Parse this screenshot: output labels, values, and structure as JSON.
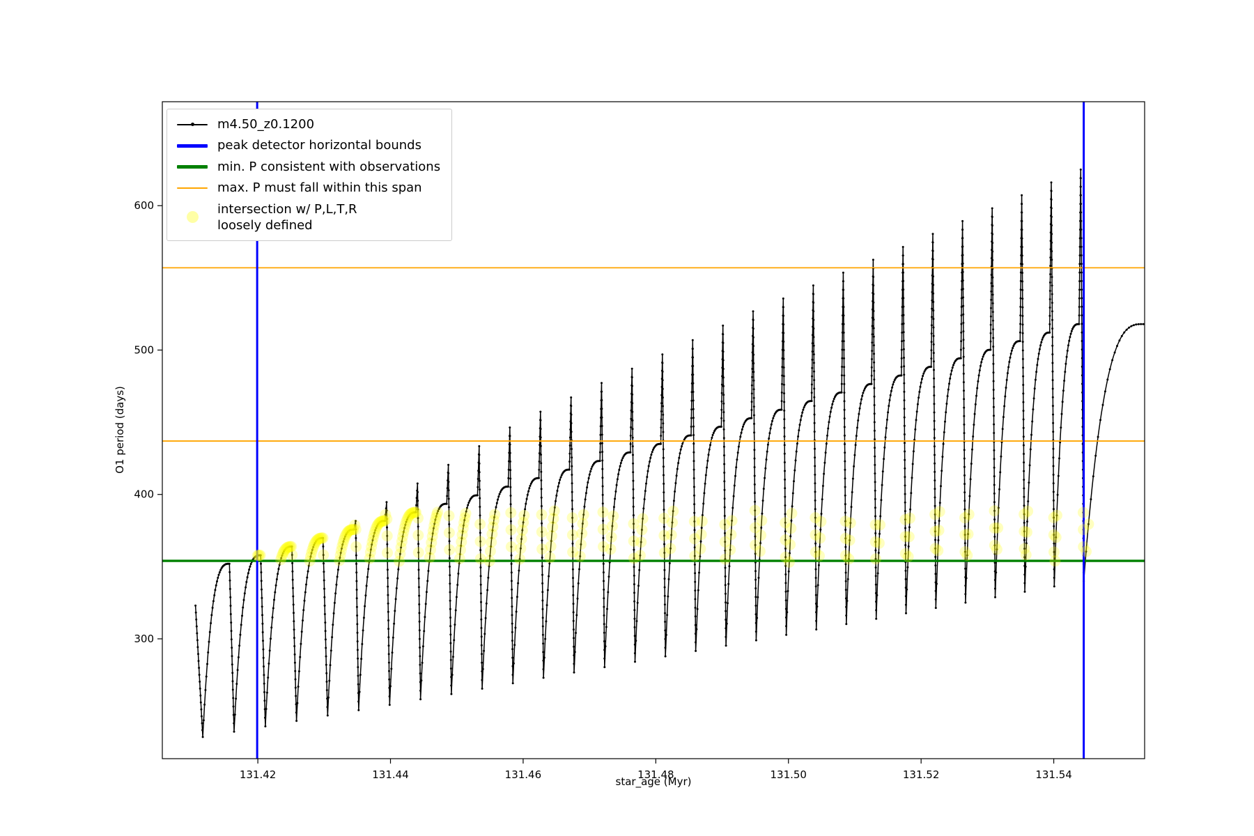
{
  "chart_data": {
    "type": "line",
    "title": "",
    "xlabel": "star_age (Myr)",
    "ylabel": "O1 period (days)",
    "xlim": [
      131.4056,
      131.5537
    ],
    "ylim": [
      217,
      672
    ],
    "xticks": [
      {
        "v": 131.42,
        "label": "131.42"
      },
      {
        "v": 131.44,
        "label": "131.44"
      },
      {
        "v": 131.46,
        "label": "131.46"
      },
      {
        "v": 131.48,
        "label": "131.48"
      },
      {
        "v": 131.5,
        "label": "131.50"
      },
      {
        "v": 131.52,
        "label": "131.52"
      },
      {
        "v": 131.54,
        "label": "131.54"
      }
    ],
    "yticks": [
      {
        "v": 300,
        "label": "300"
      },
      {
        "v": 400,
        "label": "400"
      },
      {
        "v": 500,
        "label": "500"
      },
      {
        "v": 600,
        "label": "600"
      }
    ],
    "colors": {
      "series": "#000000",
      "bounds": "#0000ff",
      "min_p": "#008000",
      "max_p": "#ffa500",
      "intersection": "#ffff00"
    },
    "series_name": "m4.50_z0.1200",
    "vlines_blue": [
      131.4199,
      131.54452
    ],
    "hlines_orange": [
      557,
      437
    ],
    "hline_green": 354,
    "highlight_band": {
      "x0": 131.4199,
      "x1": 131.5456,
      "y0": 353,
      "y1": 389
    },
    "spike_width": 0.0007,
    "arch_samples": 60,
    "start": {
      "x": 131.4106,
      "y": 323
    },
    "end": {
      "x": 131.5535,
      "y": 518
    },
    "cycles": [
      {
        "x": 131.4117,
        "dip": 232.0,
        "top": 352.0,
        "spike": 352.0
      },
      {
        "x": 131.41642,
        "dip": 235.7,
        "top": 352.0,
        "spike": 352.0
      },
      {
        "x": 131.42113,
        "dip": 239.4,
        "top": 357.9,
        "spike": 357.9
      },
      {
        "x": 131.42583,
        "dip": 243.2,
        "top": 363.9,
        "spike": 363.9
      },
      {
        "x": 131.43052,
        "dip": 246.9,
        "top": 369.8,
        "spike": 369.8
      },
      {
        "x": 131.4352,
        "dip": 250.6,
        "top": 375.7,
        "spike": 381.7
      },
      {
        "x": 131.43987,
        "dip": 254.3,
        "top": 381.7,
        "spike": 394.7
      },
      {
        "x": 131.44453,
        "dip": 258.1,
        "top": 387.6,
        "spike": 407.6
      },
      {
        "x": 131.44918,
        "dip": 261.8,
        "top": 393.5,
        "spike": 420.5
      },
      {
        "x": 131.45382,
        "dip": 265.5,
        "top": 399.4,
        "spike": 433.4
      },
      {
        "x": 131.45845,
        "dip": 269.2,
        "top": 405.4,
        "spike": 446.4
      },
      {
        "x": 131.46307,
        "dip": 273.0,
        "top": 411.3,
        "spike": 457.3
      },
      {
        "x": 131.46768,
        "dip": 276.7,
        "top": 417.2,
        "spike": 467.2
      },
      {
        "x": 131.47228,
        "dip": 280.4,
        "top": 423.2,
        "spike": 477.2
      },
      {
        "x": 131.47687,
        "dip": 284.1,
        "top": 429.1,
        "spike": 487.1
      },
      {
        "x": 131.48145,
        "dip": 287.9,
        "top": 435.0,
        "spike": 497.0
      },
      {
        "x": 131.48602,
        "dip": 291.6,
        "top": 440.9,
        "spike": 506.9
      },
      {
        "x": 131.49058,
        "dip": 295.3,
        "top": 446.9,
        "spike": 516.9
      },
      {
        "x": 131.49513,
        "dip": 299.0,
        "top": 452.8,
        "spike": 526.8
      },
      {
        "x": 131.49967,
        "dip": 302.8,
        "top": 458.7,
        "spike": 535.7
      },
      {
        "x": 131.5042,
        "dip": 306.5,
        "top": 464.7,
        "spike": 544.7
      },
      {
        "x": 131.50872,
        "dip": 310.2,
        "top": 470.6,
        "spike": 553.6
      },
      {
        "x": 131.51323,
        "dip": 313.9,
        "top": 476.5,
        "spike": 562.5
      },
      {
        "x": 131.51773,
        "dip": 317.7,
        "top": 482.4,
        "spike": 571.4
      },
      {
        "x": 131.52222,
        "dip": 321.4,
        "top": 488.4,
        "spike": 580.4
      },
      {
        "x": 131.5267,
        "dip": 325.1,
        "top": 494.3,
        "spike": 589.3
      },
      {
        "x": 131.53117,
        "dip": 328.8,
        "top": 500.2,
        "spike": 598.2
      },
      {
        "x": 131.53563,
        "dip": 332.6,
        "top": 506.2,
        "spike": 607.2
      },
      {
        "x": 131.54008,
        "dip": 336.3,
        "top": 512.1,
        "spike": 616.1
      },
      {
        "x": 131.54452,
        "dip": 340.0,
        "top": 518.0,
        "spike": 625.0
      }
    ],
    "legend": [
      {
        "type": "line",
        "marker": true,
        "color": "#000000",
        "lw": 2,
        "icon": "series-line-icon",
        "label": "m4.50_z0.1200"
      },
      {
        "type": "line",
        "marker": false,
        "color": "#0000ff",
        "lw": 5,
        "icon": "blue-bounds-line-icon",
        "label": "peak detector horizontal bounds"
      },
      {
        "type": "line",
        "marker": false,
        "color": "#008000",
        "lw": 5,
        "icon": "green-min-line-icon",
        "label": "min. P consistent with observations"
      },
      {
        "type": "line",
        "marker": false,
        "color": "#ffa500",
        "lw": 2,
        "icon": "orange-max-line-icon",
        "label": "max. P must fall within this span"
      },
      {
        "type": "dot",
        "marker": false,
        "color": "#ffff00",
        "lw": 0,
        "icon": "yellow-scatter-icon",
        "label": "intersection w/ P,L,T,R\nloosely defined"
      }
    ]
  }
}
